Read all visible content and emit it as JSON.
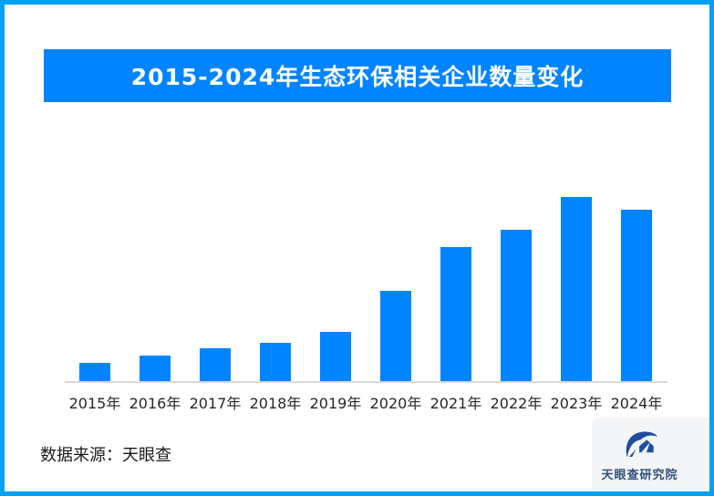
{
  "page": {
    "background": "#FFFFFF",
    "frame_border_color": "#00A0F7"
  },
  "header": {
    "title": "2015-2024年生态环保相关企业数量变化",
    "banner_color": "#0084FF",
    "title_color": "#FFFFFF"
  },
  "chart_data": {
    "type": "bar",
    "title": "2015-2024年生态环保相关企业数量变化",
    "categories": [
      "2015年",
      "2016年",
      "2017年",
      "2018年",
      "2019年",
      "2020年",
      "2021年",
      "2022年",
      "2023年",
      "2024年"
    ],
    "values": [
      10,
      14,
      18,
      21,
      27,
      49,
      73,
      82,
      100,
      93
    ],
    "values_note": "relative index estimated from bar heights (2023 = 100); the chart displays no numeric axis, gridlines or data labels",
    "xlabel": "",
    "ylabel": "",
    "ylim": [
      0,
      100
    ],
    "grid": false,
    "legend": false,
    "bar_color": "#0084FF",
    "axis_line_color": "#D9D9D9",
    "tick_label_color": "#262626"
  },
  "footer": {
    "source_label": "数据来源：天眼查"
  },
  "logo": {
    "name": "天眼查研究院",
    "card_background": "#F3F5F6",
    "mark_color": "#1D4F9E",
    "text_color": "#33517E"
  }
}
